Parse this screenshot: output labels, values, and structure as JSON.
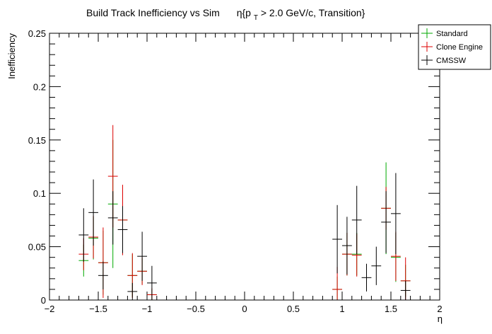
{
  "chart_data": {
    "type": "scatter",
    "title_main": "Build Track Inefficiency vs Sim",
    "title_eta": "η{p",
    "title_sub": "T",
    "title_rest": " > 2.0 GeV/c, Transition}",
    "xlabel": "η",
    "ylabel": "Inefficiency",
    "xlim": [
      -2,
      2
    ],
    "ylim": [
      0,
      0.25
    ],
    "x_ticks": [
      -2,
      -1.5,
      -1,
      -0.5,
      0,
      0.5,
      1,
      1.5,
      2
    ],
    "x_tick_labels": [
      "−2",
      "−1.5",
      "−1",
      "−0.5",
      "0",
      "0.5",
      "1",
      "1.5",
      "2"
    ],
    "y_ticks": [
      0,
      0.05,
      0.1,
      0.15,
      0.2,
      0.25
    ],
    "y_tick_labels": [
      "0",
      "0.05",
      "0.1",
      "0.15",
      "0.2",
      "0.25"
    ],
    "bin_half_width": 0.05,
    "grid": false,
    "legend_position": "top-right",
    "series": [
      {
        "name": "Standard",
        "color": "#00aa00",
        "points": [
          {
            "x": -1.65,
            "y": 0.037,
            "err": 0.015
          },
          {
            "x": -1.55,
            "y": 0.058,
            "err": 0.02
          },
          {
            "x": -1.45,
            "y": 0.035,
            "err": 0.03
          },
          {
            "x": -1.35,
            "y": 0.09,
            "err": 0.06
          },
          {
            "x": -1.25,
            "y": 0.075,
            "err": 0.03
          },
          {
            "x": -1.15,
            "y": 0.023,
            "err": 0.02
          },
          {
            "x": -1.05,
            "y": 0.027,
            "err": 0.012
          },
          {
            "x": -0.95,
            "y": 0.005,
            "err": 0.005
          },
          {
            "x": 0.95,
            "y": 0.01,
            "err": 0.012
          },
          {
            "x": 1.05,
            "y": 0.043,
            "err": 0.02
          },
          {
            "x": 1.15,
            "y": 0.043,
            "err": 0.02
          },
          {
            "x": 1.45,
            "y": 0.086,
            "err": 0.043
          },
          {
            "x": 1.55,
            "y": 0.04,
            "err": 0.023
          },
          {
            "x": 1.65,
            "y": 0.018,
            "err": 0.015
          }
        ]
      },
      {
        "name": "Clone Engine",
        "color": "#dd0000",
        "points": [
          {
            "x": -1.65,
            "y": 0.043,
            "err": 0.015
          },
          {
            "x": -1.55,
            "y": 0.059,
            "err": 0.02
          },
          {
            "x": -1.45,
            "y": 0.035,
            "err": 0.033
          },
          {
            "x": -1.35,
            "y": 0.116,
            "err": 0.048
          },
          {
            "x": -1.25,
            "y": 0.075,
            "err": 0.033
          },
          {
            "x": -1.15,
            "y": 0.023,
            "err": 0.021
          },
          {
            "x": -1.05,
            "y": 0.027,
            "err": 0.013
          },
          {
            "x": -0.95,
            "y": 0.005,
            "err": 0.006
          },
          {
            "x": 0.95,
            "y": 0.01,
            "err": 0.021
          },
          {
            "x": 1.05,
            "y": 0.043,
            "err": 0.02
          },
          {
            "x": 1.15,
            "y": 0.042,
            "err": 0.02
          },
          {
            "x": 1.45,
            "y": 0.086,
            "err": 0.02
          },
          {
            "x": 1.55,
            "y": 0.041,
            "err": 0.023
          },
          {
            "x": 1.65,
            "y": 0.018,
            "err": 0.022
          }
        ]
      },
      {
        "name": "CMSSW",
        "color": "#000000",
        "points": [
          {
            "x": -1.65,
            "y": 0.061,
            "err": 0.025
          },
          {
            "x": -1.55,
            "y": 0.082,
            "err": 0.031
          },
          {
            "x": -1.45,
            "y": 0.023,
            "err": 0.013
          },
          {
            "x": -1.35,
            "y": 0.077,
            "err": 0.025
          },
          {
            "x": -1.25,
            "y": 0.066,
            "err": 0.022
          },
          {
            "x": -1.15,
            "y": 0.008,
            "err": 0.008
          },
          {
            "x": -1.05,
            "y": 0.041,
            "err": 0.023
          },
          {
            "x": -0.95,
            "y": 0.016,
            "err": 0.016
          },
          {
            "x": 0.95,
            "y": 0.057,
            "err": 0.032
          },
          {
            "x": 1.05,
            "y": 0.051,
            "err": 0.027
          },
          {
            "x": 1.15,
            "y": 0.075,
            "err": 0.032
          },
          {
            "x": 1.25,
            "y": 0.021,
            "err": 0.013
          },
          {
            "x": 1.35,
            "y": 0.032,
            "err": 0.018
          },
          {
            "x": 1.45,
            "y": 0.073,
            "err": 0.029
          },
          {
            "x": 1.55,
            "y": 0.081,
            "err": 0.038
          },
          {
            "x": 1.65,
            "y": 0.009,
            "err": 0.009
          }
        ]
      }
    ]
  }
}
